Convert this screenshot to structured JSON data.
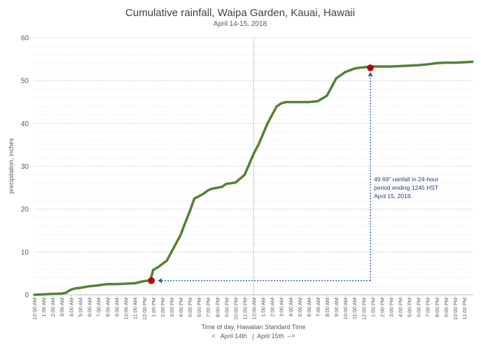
{
  "chart_data": {
    "type": "line",
    "title": "Cumulative rainfall, Waipa Garden, Kauai, Hawaii",
    "subtitle": "April 14-15, 2018",
    "xlabel": "Time of day, Hawaiian Standard Time",
    "xlabel_sub": "<   April 14th   |  April 15th  -->",
    "ylabel": "precipitation, inches",
    "ylim": [
      0,
      60
    ],
    "yticks": [
      0,
      10,
      20,
      30,
      40,
      50,
      60
    ],
    "xlim": [
      0,
      48
    ],
    "x_unit": "hours since 12:00 AM April 14",
    "grid": "dotted horizontal minor lines, solid day divider at 12:00 AM",
    "xtick_labels": [
      "12:00 AM",
      "1:00 AM",
      "2:00 AM",
      "3:00 AM",
      "4:00 AM",
      "5:00 AM",
      "6:00 AM",
      "7:00 AM",
      "8:00 AM",
      "9:00 AM",
      "10:00 AM",
      "11:00 AM",
      "12:00 PM",
      "1:00 PM",
      "2:00 PM",
      "3:00 PM",
      "4:00 PM",
      "5:00 PM",
      "6:00 PM",
      "7:00 PM",
      "8:00 PM",
      "9:00 PM",
      "10:00 PM",
      "11:00 PM",
      "12:00 AM",
      "1:00 AM",
      "2:00 AM",
      "3:00 AM",
      "4:00 AM",
      "5:00 AM",
      "6:00 AM",
      "7:00 AM",
      "8:00 AM",
      "9:00 AM",
      "10:00 AM",
      "11:00 AM",
      "12:00 PM",
      "1:00 PM",
      "2:00 PM",
      "3:00 PM",
      "4:00 PM",
      "5:00 PM",
      "6:00 PM",
      "7:00 PM",
      "8:00 PM",
      "9:00 PM",
      "10:00 PM",
      "11:00 PM"
    ],
    "series": [
      {
        "name": "",
        "color": "#548235",
        "x": [
          0,
          1,
          2,
          3,
          3.5,
          4,
          4.5,
          5,
          6,
          6.5,
          7,
          8,
          9,
          10,
          11,
          12,
          12.6,
          12.8,
          13,
          13.5,
          14,
          14.5,
          15,
          15.5,
          16,
          16.5,
          17,
          17.5,
          18,
          18.5,
          19,
          19.5,
          20,
          20.5,
          21,
          22,
          23,
          23.5,
          24,
          24.5,
          25,
          25.5,
          26,
          26.5,
          27,
          27.5,
          28,
          28.5,
          29,
          29.5,
          30,
          30.5,
          31,
          32,
          33,
          34,
          35,
          35.5,
          36,
          36.3,
          36.6,
          37,
          38,
          39,
          40,
          41,
          42,
          43,
          44,
          45,
          46,
          47,
          47.9
        ],
        "y": [
          0,
          0.1,
          0.2,
          0.3,
          0.5,
          1.2,
          1.5,
          1.6,
          2.0,
          2.1,
          2.2,
          2.5,
          2.5,
          2.6,
          2.7,
          3.2,
          3.3,
          4.2,
          5.8,
          6.4,
          7.2,
          8.0,
          10.0,
          12.0,
          14.0,
          16.8,
          19.5,
          22.5,
          23.0,
          23.6,
          24.4,
          24.8,
          25.0,
          25.2,
          25.9,
          26.2,
          28.0,
          30.5,
          33.0,
          35.0,
          37.5,
          40.0,
          42.0,
          44.0,
          44.7,
          45.0,
          45.0,
          45.0,
          45.0,
          45.0,
          45.0,
          45.1,
          45.2,
          46.5,
          50.5,
          52.0,
          52.8,
          53.0,
          53.1,
          53.2,
          53.2,
          53.3,
          53.3,
          53.3,
          53.4,
          53.5,
          53.6,
          53.8,
          54.1,
          54.2,
          54.2,
          54.3,
          54.4
        ]
      }
    ],
    "markers": [
      {
        "x": 12.8,
        "y": 3.3,
        "color": "#c00000"
      },
      {
        "x": 36.75,
        "y": 52.99,
        "color": "#c00000"
      }
    ],
    "annotation": {
      "lines": [
        "49.69\" rainfall in 24-hour",
        "period ending 1245 HST",
        "April 15, 2018."
      ],
      "color": "#2e5aa8"
    }
  }
}
